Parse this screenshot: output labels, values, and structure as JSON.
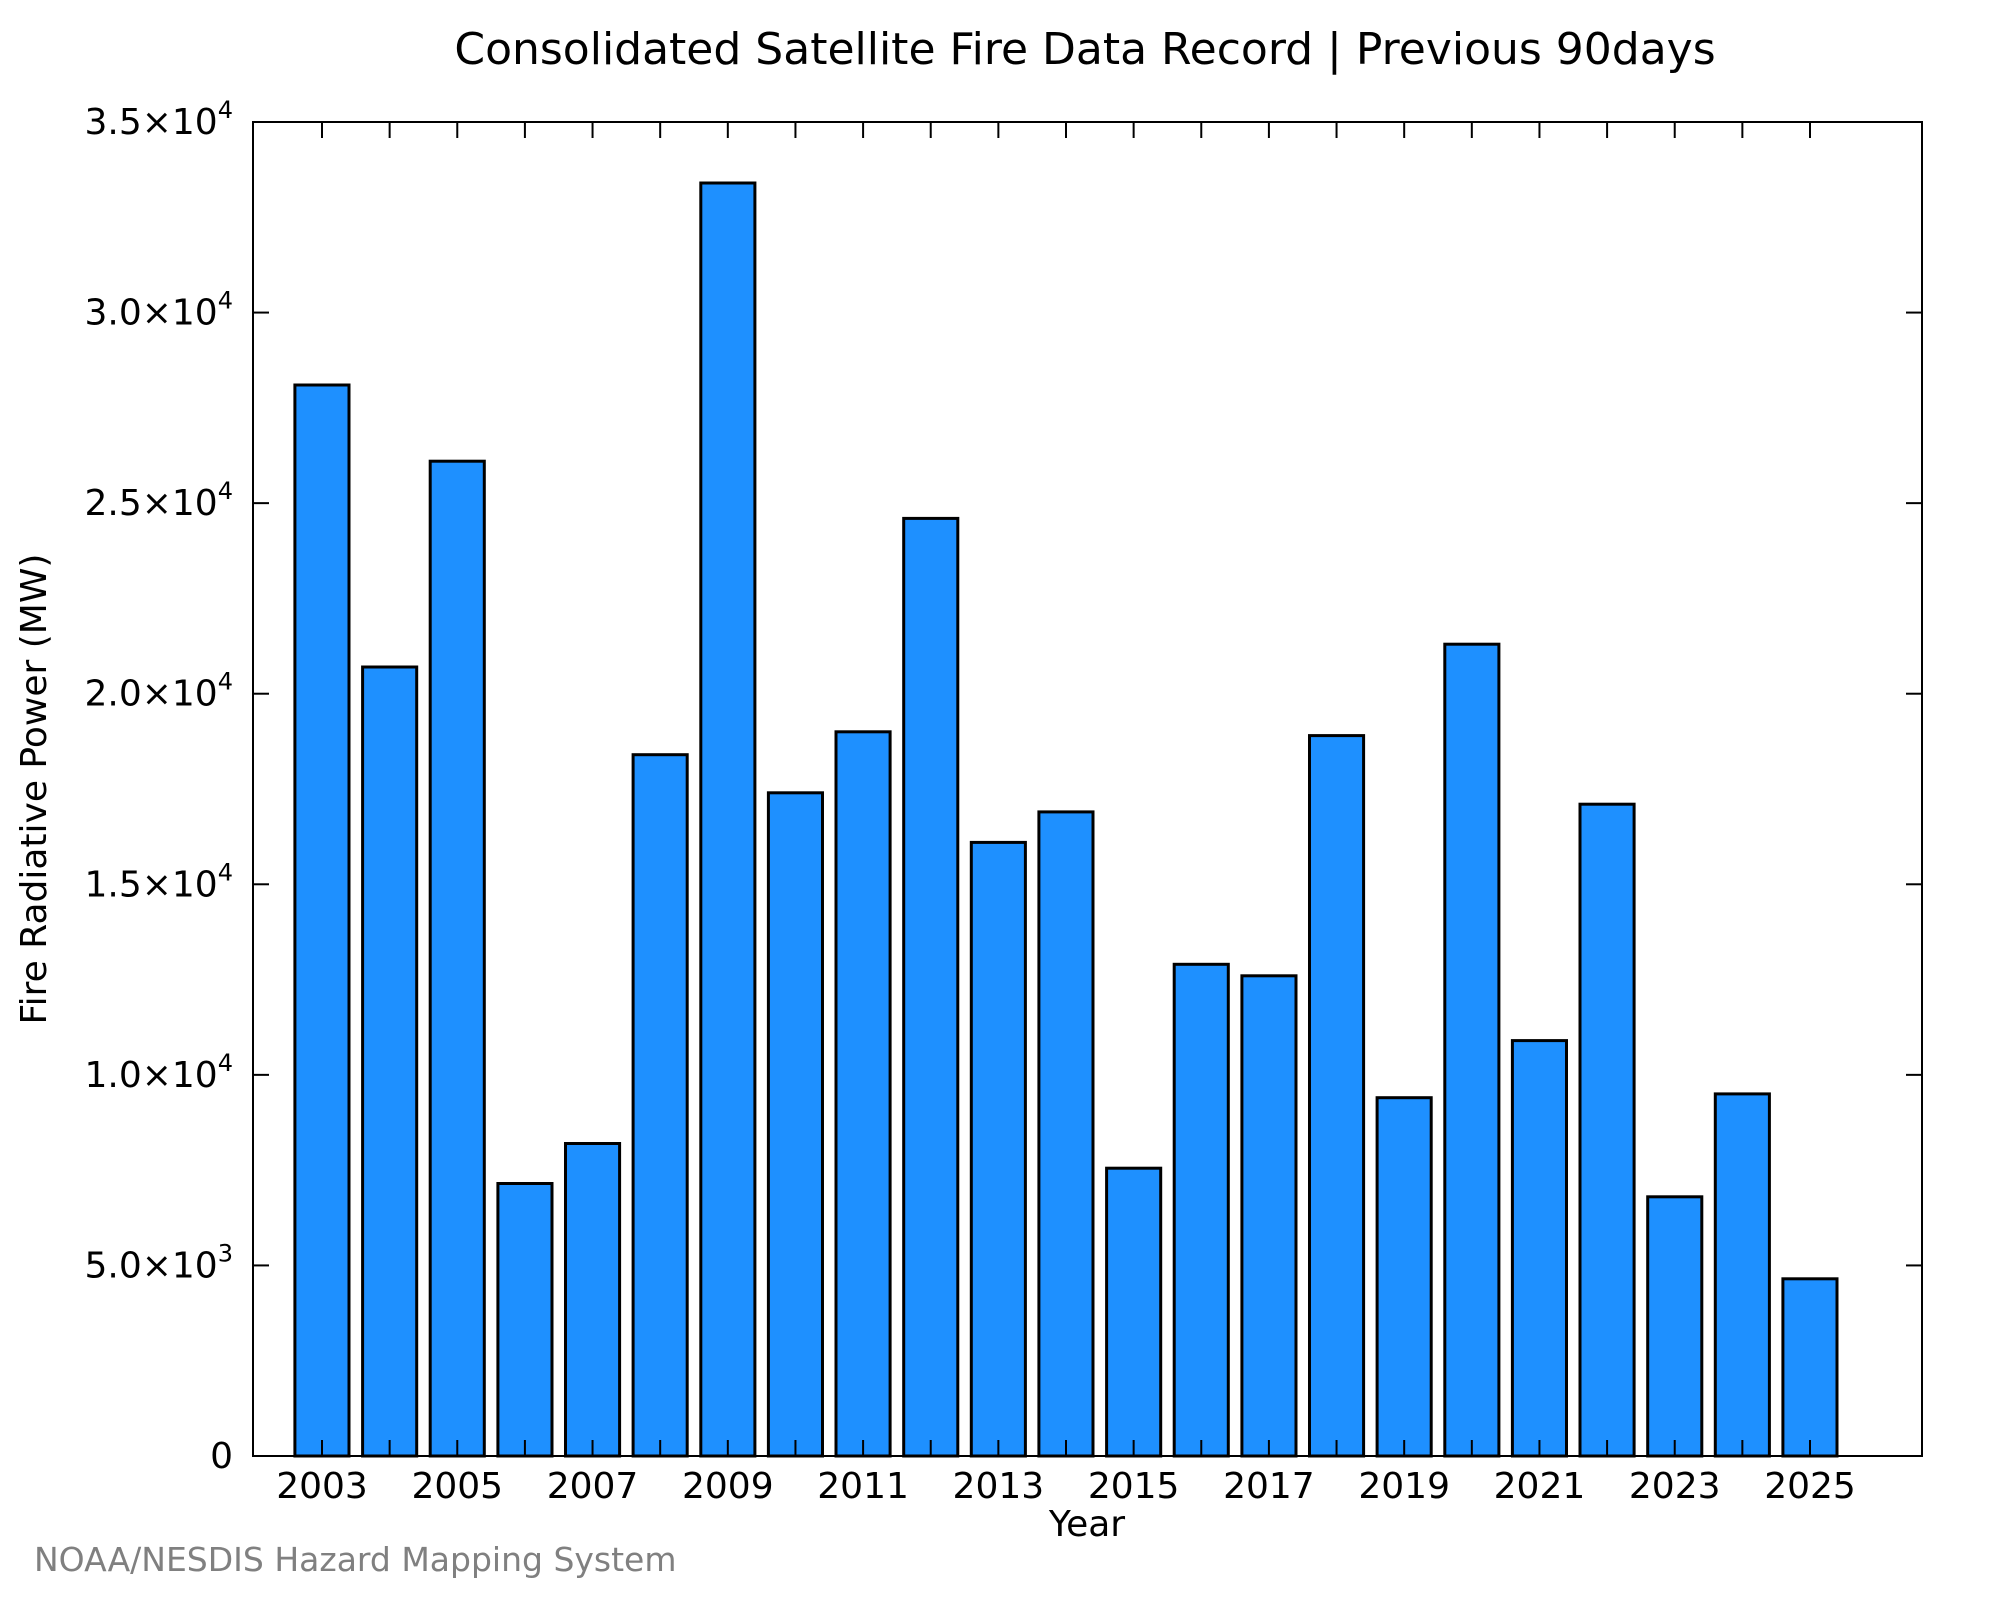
{
  "chart_data": {
    "type": "bar",
    "title": "Consolidated Satellite Fire Data Record | Previous 90days",
    "xlabel": "Year",
    "ylabel": "Fire Radiative Power (MW)",
    "categories": [
      "2003",
      "2004",
      "2005",
      "2006",
      "2007",
      "2008",
      "2009",
      "2010",
      "2011",
      "2012",
      "2013",
      "2014",
      "2015",
      "2016",
      "2017",
      "2018",
      "2019",
      "2020",
      "2021",
      "2022",
      "2023",
      "2024",
      "2025"
    ],
    "values": [
      28100,
      20700,
      26100,
      7150,
      8200,
      18400,
      33400,
      17400,
      19000,
      24600,
      16100,
      16900,
      7550,
      12900,
      12600,
      18900,
      9400,
      21300,
      10900,
      17100,
      6800,
      9500,
      4650
    ],
    "x_tick_labels": [
      "2003",
      "2005",
      "2007",
      "2009",
      "2011",
      "2013",
      "2015",
      "2017",
      "2019",
      "2021",
      "2023",
      "2025"
    ],
    "y_ticks": [
      {
        "value": 0,
        "mantissa": "0",
        "exp": ""
      },
      {
        "value": 5000,
        "mantissa": "5.0×10",
        "exp": "3"
      },
      {
        "value": 10000,
        "mantissa": "1.0×10",
        "exp": "4"
      },
      {
        "value": 15000,
        "mantissa": "1.5×10",
        "exp": "4"
      },
      {
        "value": 20000,
        "mantissa": "2.0×10",
        "exp": "4"
      },
      {
        "value": 25000,
        "mantissa": "2.5×10",
        "exp": "4"
      },
      {
        "value": 30000,
        "mantissa": "3.0×10",
        "exp": "4"
      },
      {
        "value": 35000,
        "mantissa": "3.5×10",
        "exp": "4"
      }
    ],
    "ylim": [
      0,
      35000
    ],
    "grid": false,
    "bar_color": "#1e90ff",
    "edge_color": "#000000"
  },
  "footer": "NOAA/NESDIS Hazard Mapping System"
}
